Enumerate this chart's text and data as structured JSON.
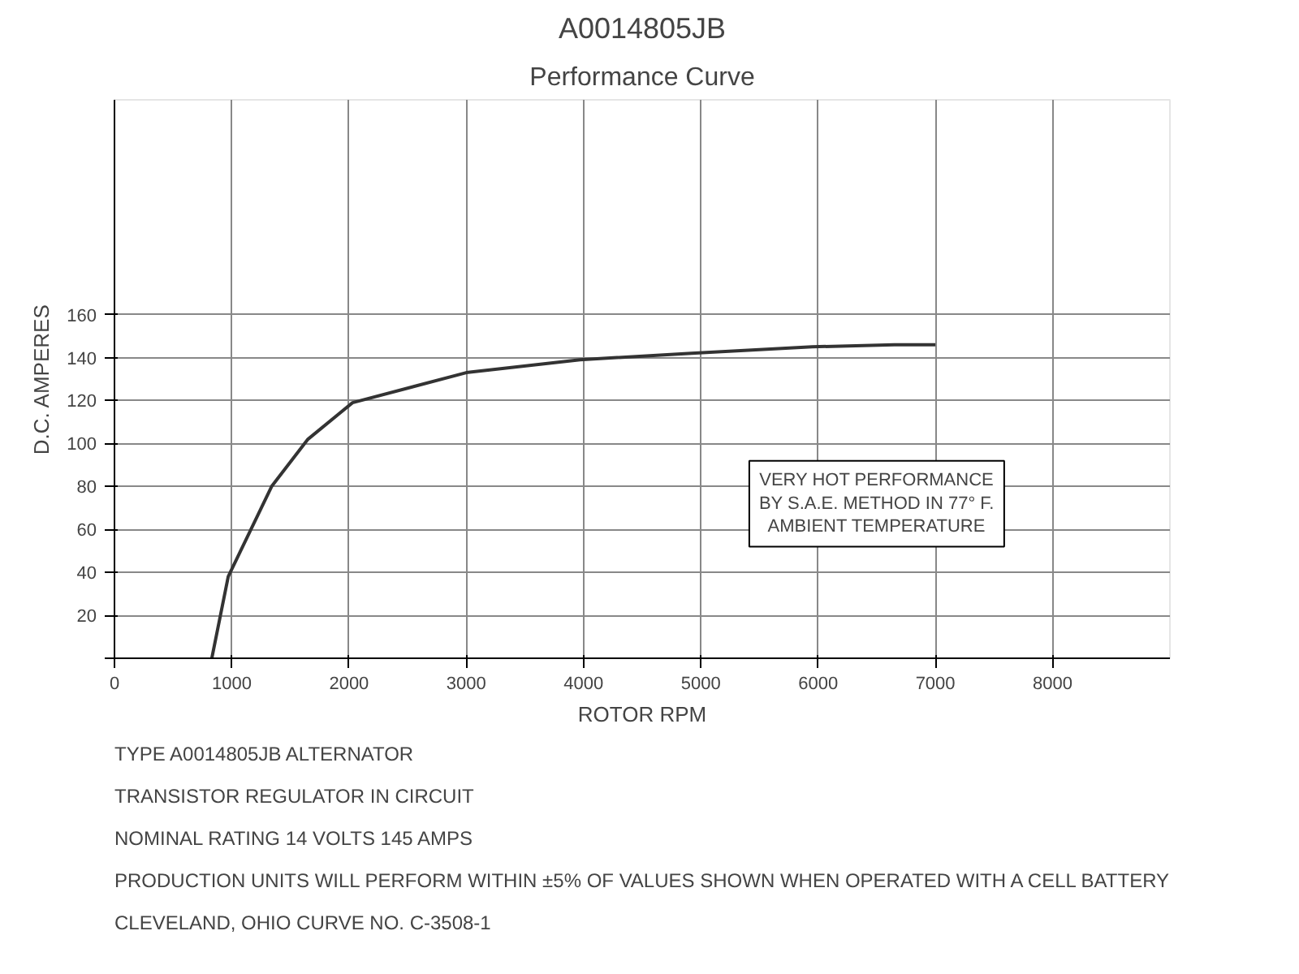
{
  "chart_data": {
    "type": "line",
    "title": "A0014805JB",
    "subtitle": "Performance Curve",
    "xlabel": "ROTOR RPM",
    "ylabel": "D.C. AMPERES",
    "x": [
      830,
      970,
      1340,
      1650,
      2030,
      3000,
      3970,
      4920,
      5950,
      6650,
      7000
    ],
    "series": [
      {
        "color": "#333333",
        "values": [
          0,
          38,
          80,
          102,
          119,
          133,
          139,
          142,
          145,
          146,
          146
        ]
      }
    ],
    "xlim": [
      0,
      9000
    ],
    "ylim": [
      0,
      260
    ],
    "xticks": [
      0,
      1000,
      2000,
      3000,
      4000,
      5000,
      6000,
      7000,
      8000
    ],
    "yticks": [
      {
        "value": 0,
        "label": null
      },
      20,
      40,
      60,
      80,
      100,
      120,
      140,
      160
    ],
    "grid": true,
    "marker": "none",
    "line_style": "solid",
    "annotations": [
      "VERY HOT PERFORMANCE\nBY S.A.E. METHOD IN 77° F.\nAMBIENT TEMPERATURE",
      "TYPE A0014805JB ALTERNATOR",
      "TRANSISTOR REGULATOR IN CIRCUIT",
      "NOMINAL RATING 14 VOLTS 145 AMPS",
      "PRODUCTION UNITS WILL PERFORM WITHIN ±5% OF VALUES SHOWN WHEN OPERATED WITH A CELL BATTERY",
      "CLEVELAND, OHIO   CURVE NO. C-3508-1"
    ]
  }
}
